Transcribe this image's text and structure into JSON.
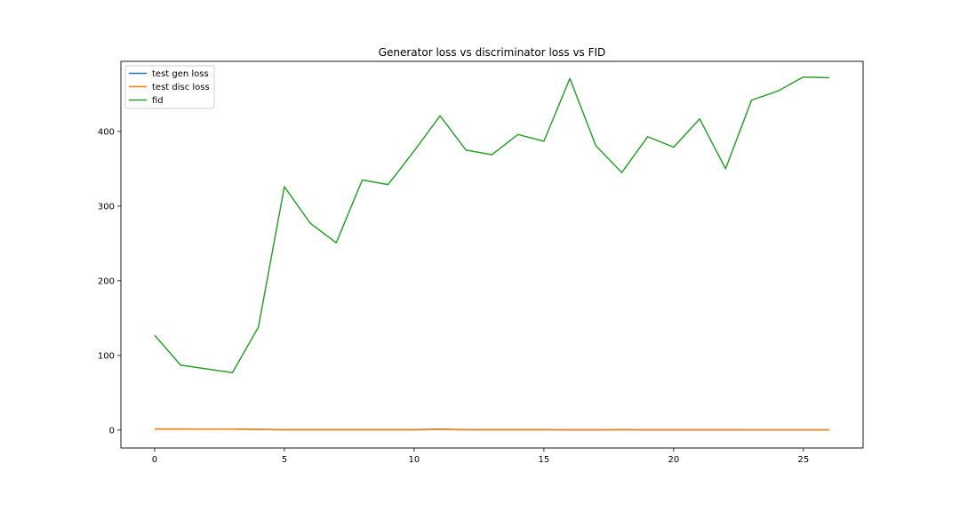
{
  "chart_data": {
    "type": "line",
    "title": "Generator loss vs discriminator loss vs FID",
    "xlabel": "",
    "ylabel": "",
    "xlim": [
      -1.3,
      27.3
    ],
    "ylim": [
      -24,
      494
    ],
    "xticks": [
      0,
      5,
      10,
      15,
      20,
      25
    ],
    "yticks": [
      0,
      100,
      200,
      300,
      400
    ],
    "legend_position": "upper left",
    "grid": false,
    "series": [
      {
        "name": "test gen loss",
        "color": "#1f77b4",
        "x": [
          0,
          1,
          2,
          3,
          4,
          5,
          6,
          7,
          8,
          9,
          10,
          11,
          12,
          13,
          14,
          15,
          16,
          17,
          18,
          19,
          20,
          21,
          22,
          23,
          24,
          25,
          26
        ],
        "y": [
          1.5,
          1.5,
          1.4,
          1.3,
          1.0,
          0.5,
          0.5,
          0.5,
          0.5,
          0.5,
          0.5,
          1.2,
          0.5,
          0.5,
          0.5,
          0.5,
          0.4,
          0.4,
          0.5,
          0.4,
          0.4,
          0.4,
          0.4,
          0.3,
          0.3,
          0.3,
          0.3
        ]
      },
      {
        "name": "test disc loss",
        "color": "#ff7f0e",
        "x": [
          0,
          1,
          2,
          3,
          4,
          5,
          6,
          7,
          8,
          9,
          10,
          11,
          12,
          13,
          14,
          15,
          16,
          17,
          18,
          19,
          20,
          21,
          22,
          23,
          24,
          25,
          26
        ],
        "y": [
          1.4,
          1.4,
          1.4,
          1.3,
          0.9,
          0.3,
          0.3,
          0.3,
          0.3,
          0.3,
          0.3,
          1.0,
          0.3,
          0.3,
          0.3,
          0.3,
          0.3,
          0.3,
          0.3,
          0.3,
          0.3,
          0.3,
          0.3,
          0.3,
          0.3,
          0.3,
          0.3
        ]
      },
      {
        "name": "fid",
        "color": "#2ca02c",
        "x": [
          0,
          1,
          2,
          3,
          4,
          5,
          6,
          7,
          8,
          9,
          10,
          11,
          12,
          13,
          14,
          15,
          16,
          17,
          18,
          19,
          20,
          21,
          22,
          23,
          24,
          25,
          26
        ],
        "y": [
          127,
          87,
          82,
          77,
          138,
          326,
          277,
          251,
          335,
          329,
          374,
          421,
          375,
          369,
          396,
          387,
          471,
          381,
          345,
          393,
          379,
          417,
          350,
          442,
          454,
          473,
          472
        ]
      }
    ]
  }
}
